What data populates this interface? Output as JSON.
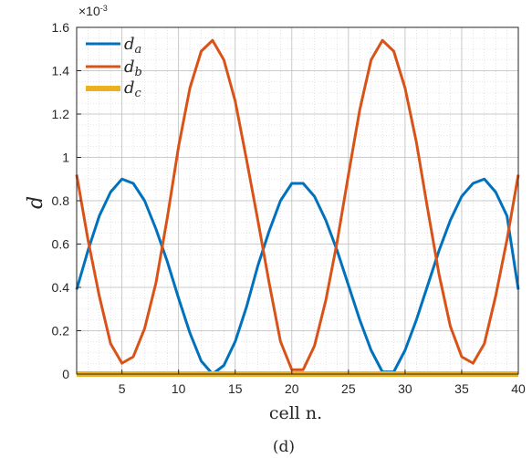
{
  "chart_data": {
    "type": "line",
    "panel_label": "(d)",
    "xlabel": "cell n.",
    "ylabel": "d",
    "exponent_label": "×10",
    "exponent_power": "-3",
    "xlim": [
      1,
      40
    ],
    "ylim": [
      0,
      1.6
    ],
    "xticks": [
      5,
      10,
      15,
      20,
      25,
      30,
      35,
      40
    ],
    "yticks": [
      0,
      0.2,
      0.4,
      0.6,
      0.8,
      1,
      1.2,
      1.4,
      1.6
    ],
    "ytick_labels": [
      "0",
      "0.2",
      "0.4",
      "0.6",
      "0.8",
      "1",
      "1.2",
      "1.4",
      "1.6"
    ],
    "grid": true,
    "minor_grid": true,
    "legend_position": "top-left",
    "x": [
      1,
      2,
      3,
      4,
      5,
      6,
      7,
      8,
      9,
      10,
      11,
      12,
      13,
      14,
      15,
      16,
      17,
      18,
      19,
      20,
      21,
      22,
      23,
      24,
      25,
      26,
      27,
      28,
      29,
      30,
      31,
      32,
      33,
      34,
      35,
      36,
      37,
      38,
      39,
      40
    ],
    "series": [
      {
        "name": "d",
        "subscript": "a",
        "color": "#0072BD",
        "values": [
          0.39,
          0.57,
          0.73,
          0.84,
          0.9,
          0.88,
          0.8,
          0.67,
          0.52,
          0.35,
          0.19,
          0.06,
          0.0,
          0.04,
          0.15,
          0.31,
          0.5,
          0.66,
          0.8,
          0.88,
          0.88,
          0.82,
          0.71,
          0.57,
          0.41,
          0.25,
          0.11,
          0.01,
          0.01,
          0.11,
          0.25,
          0.41,
          0.57,
          0.71,
          0.82,
          0.88,
          0.9,
          0.84,
          0.73,
          0.39
        ]
      },
      {
        "name": "d",
        "subscript": "b",
        "color": "#D95319",
        "values": [
          0.92,
          0.62,
          0.36,
          0.14,
          0.05,
          0.08,
          0.21,
          0.42,
          0.72,
          1.05,
          1.32,
          1.49,
          1.54,
          1.45,
          1.26,
          0.99,
          0.71,
          0.42,
          0.15,
          0.02,
          0.02,
          0.13,
          0.34,
          0.61,
          0.92,
          1.22,
          1.45,
          1.54,
          1.49,
          1.32,
          1.07,
          0.76,
          0.46,
          0.22,
          0.08,
          0.05,
          0.14,
          0.36,
          0.62,
          0.92
        ]
      },
      {
        "name": "d",
        "subscript": "c",
        "color": "#EDB120",
        "values": [
          0,
          0,
          0,
          0,
          0,
          0,
          0,
          0,
          0,
          0,
          0,
          0,
          0,
          0,
          0,
          0,
          0,
          0,
          0,
          0,
          0,
          0,
          0,
          0,
          0,
          0,
          0,
          0,
          0,
          0,
          0,
          0,
          0,
          0,
          0,
          0,
          0,
          0,
          0,
          0
        ]
      }
    ]
  }
}
